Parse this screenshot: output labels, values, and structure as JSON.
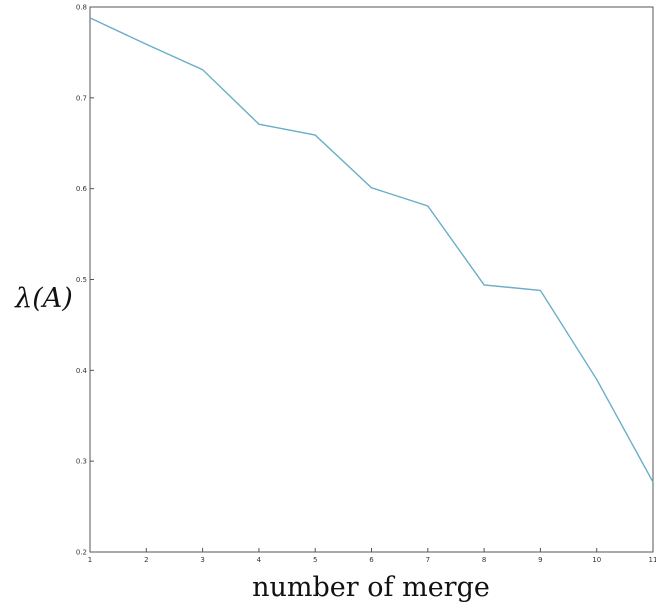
{
  "chart_data": {
    "type": "line",
    "title": "",
    "xlabel": "number of merge",
    "ylabel": "λ(A)",
    "xlim": [
      1,
      11
    ],
    "ylim": [
      0.2,
      0.8
    ],
    "grid": false,
    "x_ticks": [
      "1",
      "2",
      "3",
      "4",
      "5",
      "6",
      "7",
      "8",
      "9",
      "10",
      "11"
    ],
    "y_ticks": [
      "0.2",
      "0.3",
      "0.4",
      "0.5",
      "0.6",
      "0.7",
      "0.8"
    ],
    "line_color": "#6aaec8",
    "series": [
      {
        "x": [
          1,
          2,
          3,
          4,
          5,
          6,
          7,
          8,
          9,
          10,
          11
        ],
        "values": [
          0.788,
          0.759,
          0.731,
          0.671,
          0.659,
          0.601,
          0.581,
          0.494,
          0.488,
          0.39,
          0.277
        ]
      }
    ]
  }
}
